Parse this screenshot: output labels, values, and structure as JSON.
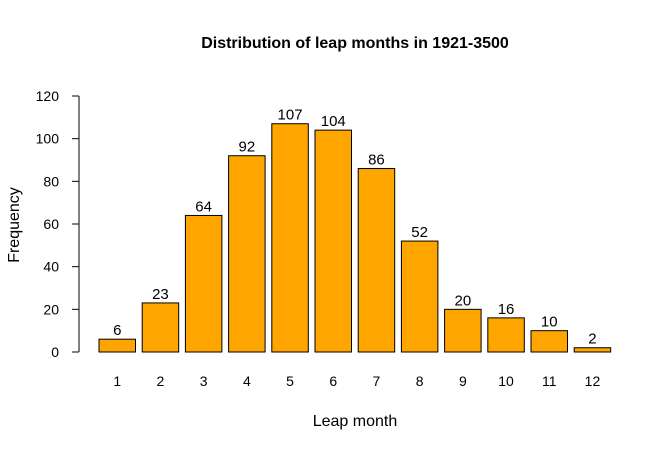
{
  "chart_data": {
    "type": "bar",
    "title": "Distribution of leap months in 1921-3500",
    "xlabel": "Leap month",
    "ylabel": "Frequency",
    "categories": [
      "1",
      "2",
      "3",
      "4",
      "5",
      "6",
      "7",
      "8",
      "9",
      "10",
      "11",
      "12"
    ],
    "values": [
      6,
      23,
      64,
      92,
      107,
      104,
      86,
      52,
      20,
      16,
      10,
      2
    ],
    "data_labels": [
      "6",
      "23",
      "64",
      "92",
      "107",
      "104",
      "86",
      "52",
      "20",
      "16",
      "10",
      "2"
    ],
    "ylim": [
      0,
      120
    ],
    "yticks": [
      "0",
      "20",
      "40",
      "60",
      "80",
      "100",
      "120"
    ],
    "grid": false,
    "bar_color": "#FFA500",
    "bar_border_color": "#000000"
  }
}
